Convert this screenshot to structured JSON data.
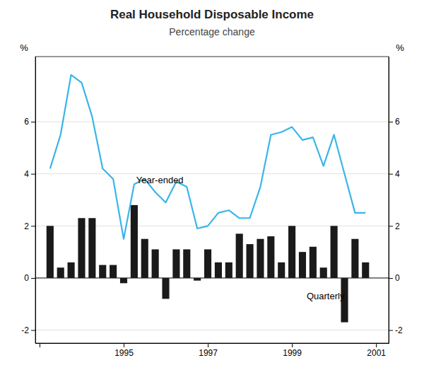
{
  "chart_data": {
    "type": "bar",
    "title": "Real Household Disposable Income",
    "subtitle": "Percentage change",
    "ylabel": "%",
    "y2label": "%",
    "x": [
      1993.25,
      1993.5,
      1993.75,
      1994.0,
      1994.25,
      1994.5,
      1994.75,
      1995.0,
      1995.25,
      1995.5,
      1995.75,
      1996.0,
      1996.25,
      1996.5,
      1996.75,
      1997.0,
      1997.25,
      1997.5,
      1997.75,
      1998.0,
      1998.25,
      1998.5,
      1998.75,
      1999.0,
      1999.25,
      1999.5,
      1999.75,
      2000.0,
      2000.25,
      2000.5,
      2000.75
    ],
    "series": [
      {
        "type": "bar",
        "color": "#1a1a1a",
        "values": [
          2.0,
          0.4,
          0.6,
          2.3,
          2.3,
          0.5,
          0.5,
          -0.2,
          2.8,
          1.5,
          1.1,
          -0.8,
          1.1,
          1.1,
          -0.1,
          1.1,
          0.6,
          0.6,
          1.7,
          1.3,
          1.5,
          1.6,
          0.6,
          2.0,
          1.0,
          1.2,
          0.4,
          2.0,
          -1.7,
          1.5,
          0.6
        ]
      },
      {
        "type": "line",
        "color": "#3ab5e8",
        "values": [
          4.2,
          5.5,
          7.8,
          7.5,
          6.2,
          4.2,
          3.8,
          1.5,
          3.6,
          3.8,
          3.3,
          2.9,
          3.7,
          3.5,
          1.9,
          2.0,
          2.5,
          2.6,
          2.3,
          2.3,
          3.5,
          5.5,
          5.6,
          5.8,
          5.3,
          5.4,
          4.3,
          5.5,
          4.0,
          2.5,
          2.5
        ]
      }
    ],
    "xlim": [
      1992.9,
      2001.3
    ],
    "xticks": [
      {
        "value": 1993,
        "label": ""
      },
      1995,
      1997,
      1999,
      2001
    ],
    "ylim": [
      -2.5,
      8.5
    ],
    "yticks": [
      -2,
      0,
      2,
      4,
      6
    ],
    "y2lim": [
      -2.5,
      8.5
    ],
    "y2ticks": [
      -2,
      0,
      2,
      4,
      6
    ],
    "grid": true,
    "annotations": [
      {
        "text": "Year-ended",
        "x": 1995.3,
        "y": 3.55
      },
      {
        "text": "Quarterly",
        "x": 1999.35,
        "y": -0.55
      }
    ]
  }
}
